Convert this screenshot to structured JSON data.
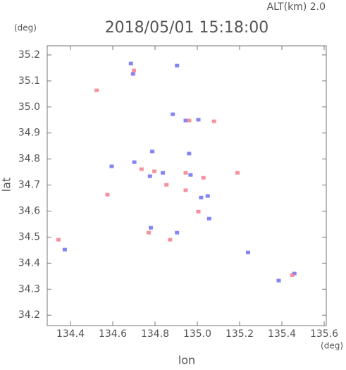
{
  "chart_data": {
    "type": "scatter",
    "title": "2018/05/01 15:18:00",
    "annotation": "ALT(km)  2.0",
    "xlabel": "lon",
    "ylabel": "lat",
    "xunit": "(deg)",
    "yunit": "(deg)",
    "xlim": [
      134.29,
      135.61
    ],
    "ylim": [
      34.16,
      35.235
    ],
    "xticks": [
      134.4,
      134.6,
      134.8,
      {
        "value": 135.0,
        "label": "135.0"
      },
      135.2,
      135.4,
      135.6
    ],
    "yticks": [
      34.2,
      34.3,
      34.4,
      34.5,
      34.6,
      34.7,
      34.8,
      34.9,
      {
        "value": 35.0,
        "label": "35.0"
      },
      35.1,
      35.2
    ],
    "series": [
      {
        "color": "#6f6ff5",
        "x": [
          134.686,
          134.904,
          134.884,
          134.945,
          135.005,
          134.787,
          134.961,
          134.595,
          134.702,
          134.837,
          134.968,
          134.776,
          135.018,
          135.049,
          135.056,
          134.78,
          134.904,
          134.373,
          135.24,
          135.385,
          135.459,
          134.696
        ],
        "y": [
          35.167,
          35.159,
          34.972,
          34.948,
          34.951,
          34.829,
          34.821,
          34.772,
          34.788,
          34.747,
          34.739,
          34.734,
          34.652,
          34.658,
          34.571,
          34.536,
          34.517,
          34.452,
          34.441,
          34.333,
          34.36,
          35.127
        ]
      },
      {
        "color": "#f57f8c",
        "x": [
          134.524,
          134.961,
          135.079,
          134.736,
          134.797,
          134.945,
          135.029,
          135.19,
          134.854,
          134.945,
          134.575,
          135.005,
          134.77,
          134.871,
          134.343,
          135.449,
          134.7
        ],
        "y": [
          35.064,
          34.948,
          34.945,
          34.761,
          34.753,
          34.747,
          34.728,
          34.747,
          34.701,
          34.68,
          34.663,
          34.598,
          34.517,
          34.49,
          34.49,
          34.354,
          35.14
        ]
      }
    ]
  }
}
